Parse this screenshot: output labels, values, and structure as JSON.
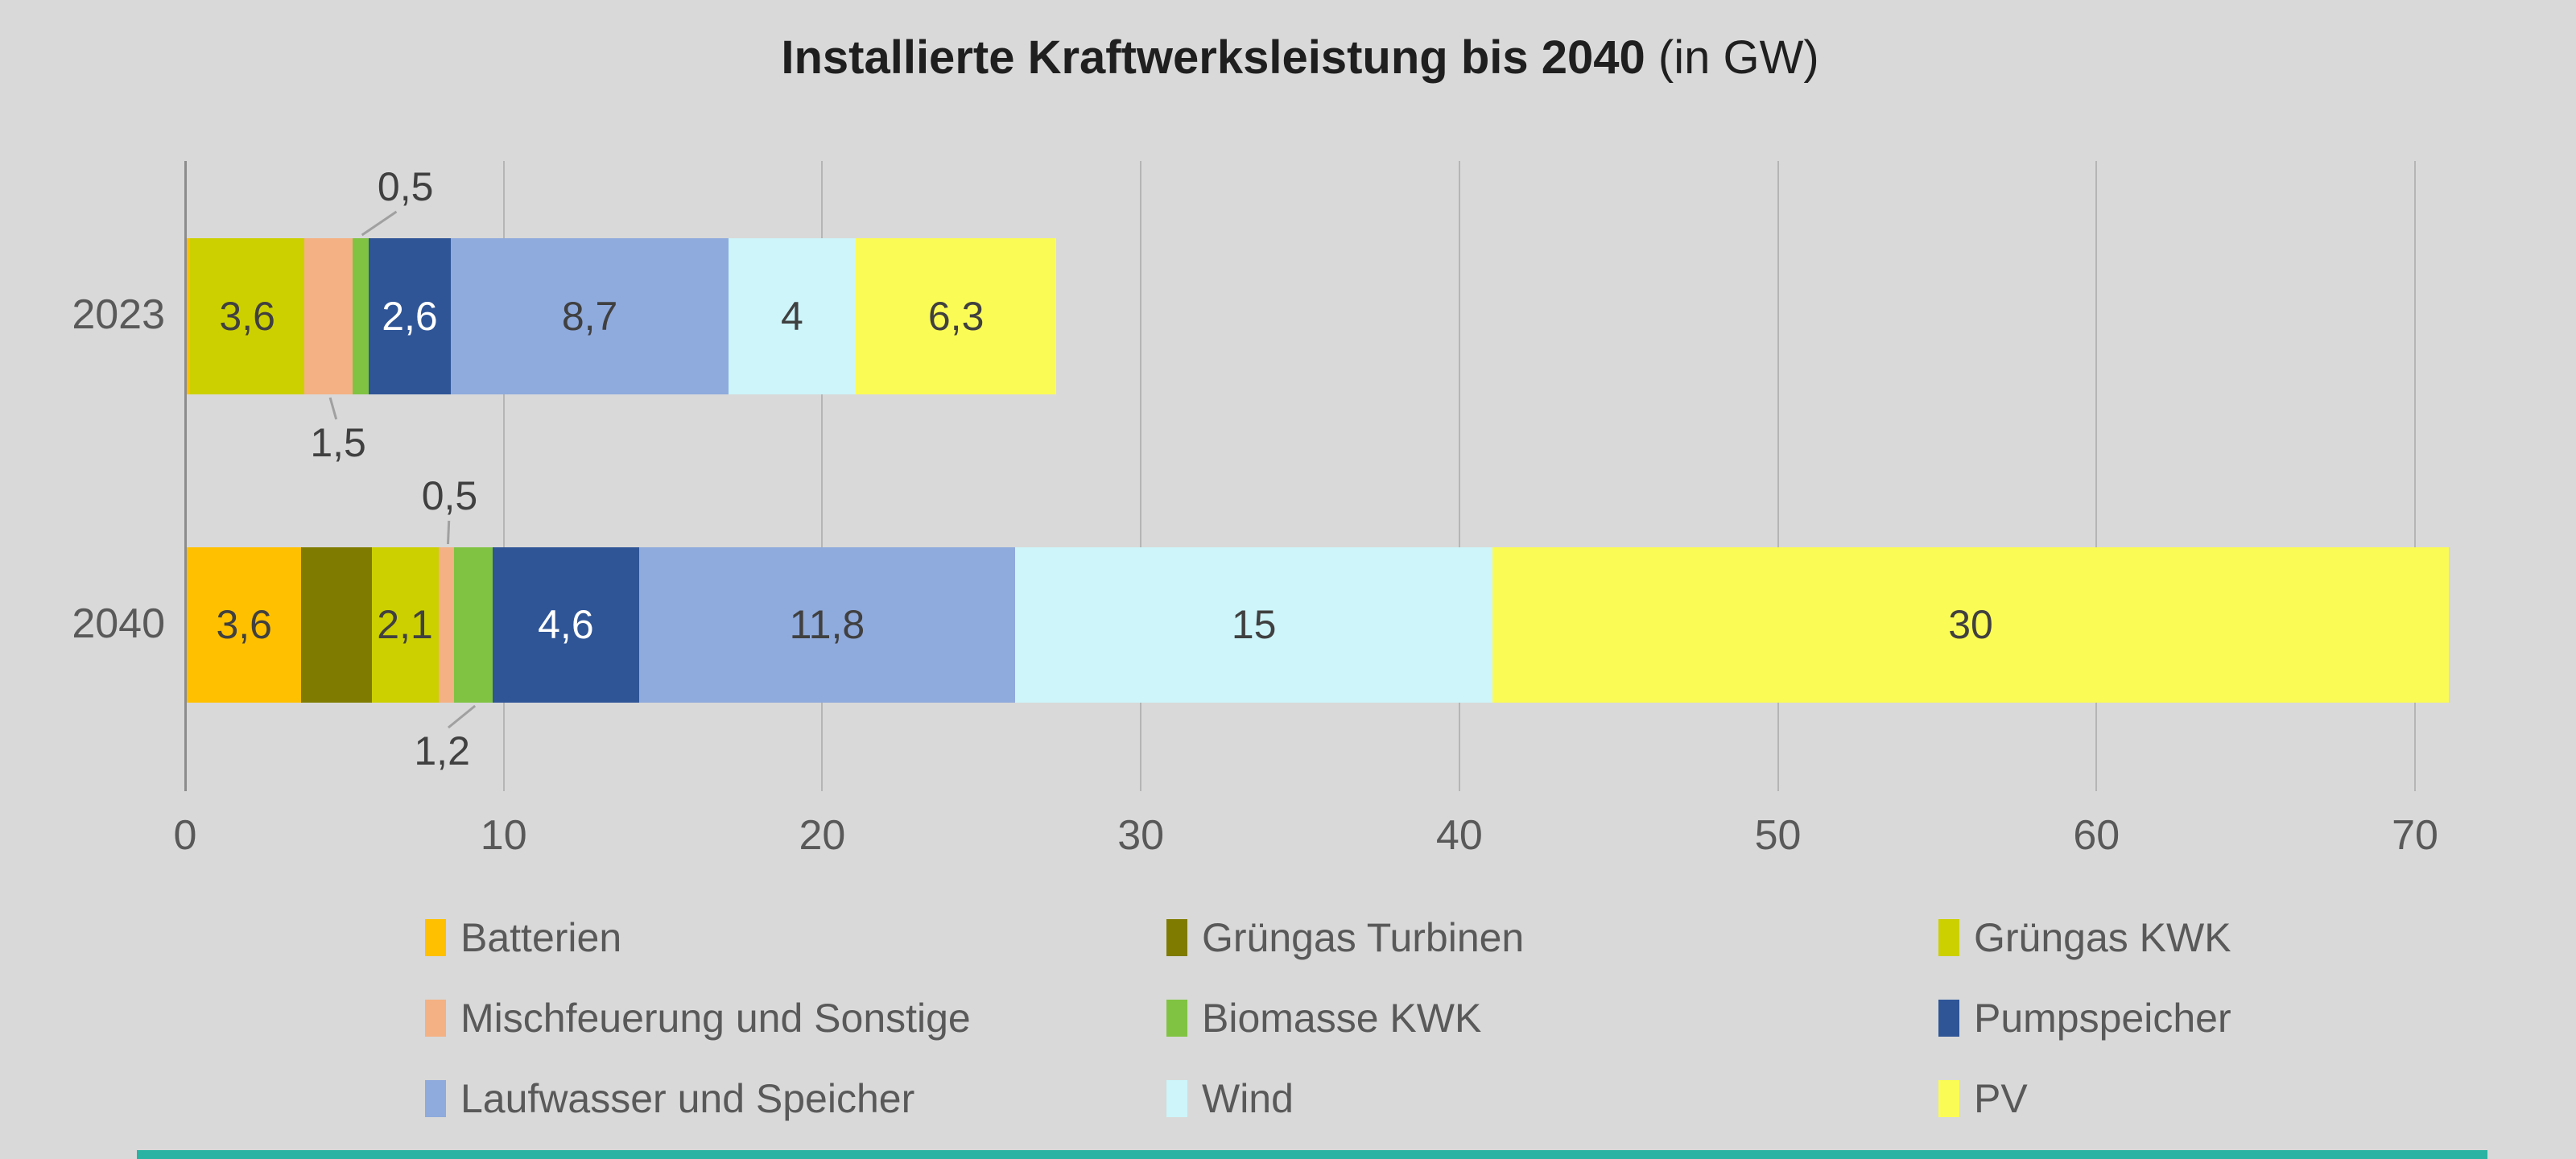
{
  "title": {
    "main": "Installierte Kraftwerksleistung bis 2040",
    "suffix": " (in GW)"
  },
  "colors": {
    "background": "#D9D9D9",
    "gridline": "#B5B5B5",
    "axis_line": "#8C8C8C",
    "gray_text": "#595959",
    "data_label_text": "#404040",
    "title_text": "#1F1F1F",
    "leader_line": "#A0A0A0",
    "accent_strip": "#2AB3A2"
  },
  "chart_data": {
    "type": "bar",
    "stacked": true,
    "orientation": "horizontal",
    "title": "Installierte Kraftwerksleistung bis 2040",
    "title_suffix": "(in GW)",
    "unit": "GW",
    "categories": [
      "2023",
      "2040"
    ],
    "x_ticks": [
      "0",
      "10",
      "20",
      "30",
      "40",
      "50",
      "60",
      "70"
    ],
    "x_range": [
      0,
      70
    ],
    "grid": true,
    "legend_position": "bottom",
    "series": [
      {
        "name": "Batterien",
        "color": "#FFC000",
        "values": [
          0.1,
          3.6
        ],
        "labels": [
          "",
          "3,6"
        ],
        "label_color": "#404040"
      },
      {
        "name": "Grüngas Turbinen",
        "color": "#7F7B00",
        "values": [
          0,
          2.2
        ],
        "labels": [
          "",
          ""
        ],
        "label_color": "#404040"
      },
      {
        "name": "Grüngas KWK",
        "color": "#CCD000",
        "values": [
          3.6,
          2.1
        ],
        "labels": [
          "3,6",
          "2,1"
        ],
        "label_color": "#404040"
      },
      {
        "name": "Mischfeuerung und Sonstige",
        "color": "#F4B183",
        "values": [
          1.5,
          0.5
        ],
        "labels": [
          "",
          ""
        ],
        "label_color": "#404040"
      },
      {
        "name": "Biomasse KWK",
        "color": "#80C342",
        "values": [
          0.5,
          1.2
        ],
        "labels": [
          "",
          ""
        ],
        "label_color": "#404040"
      },
      {
        "name": "Pumpspeicher",
        "color": "#2F5597",
        "values": [
          2.6,
          4.6
        ],
        "labels": [
          "2,6",
          "4,6"
        ],
        "label_color": "#FFFFFF"
      },
      {
        "name": "Laufwasser und Speicher",
        "color": "#8FAADC",
        "values": [
          8.7,
          11.8
        ],
        "labels": [
          "8,7",
          "11,8"
        ],
        "label_color": "#404040"
      },
      {
        "name": "Wind",
        "color": "#CDF5FA",
        "values": [
          4,
          15
        ],
        "labels": [
          "4",
          "15"
        ],
        "label_color": "#404040"
      },
      {
        "name": "PV",
        "color": "#FBFB55",
        "values": [
          6.3,
          30
        ],
        "labels": [
          "6,3",
          "30"
        ],
        "label_color": "#404040"
      }
    ],
    "callouts": [
      {
        "category": "2023",
        "series": "Biomasse KWK",
        "label": "0,5",
        "position": "above",
        "dx": 56
      },
      {
        "category": "2023",
        "series": "Mischfeuerung und Sonstige",
        "label": "1,5",
        "position": "below",
        "dx": 12
      },
      {
        "category": "2040",
        "series": "Mischfeuerung und Sonstige",
        "label": "0,5",
        "position": "above",
        "dx": 4
      },
      {
        "category": "2040",
        "series": "Biomasse KWK",
        "label": "1,2",
        "position": "below",
        "dx": -39
      }
    ],
    "totals": [
      27.3,
      71.0
    ]
  }
}
